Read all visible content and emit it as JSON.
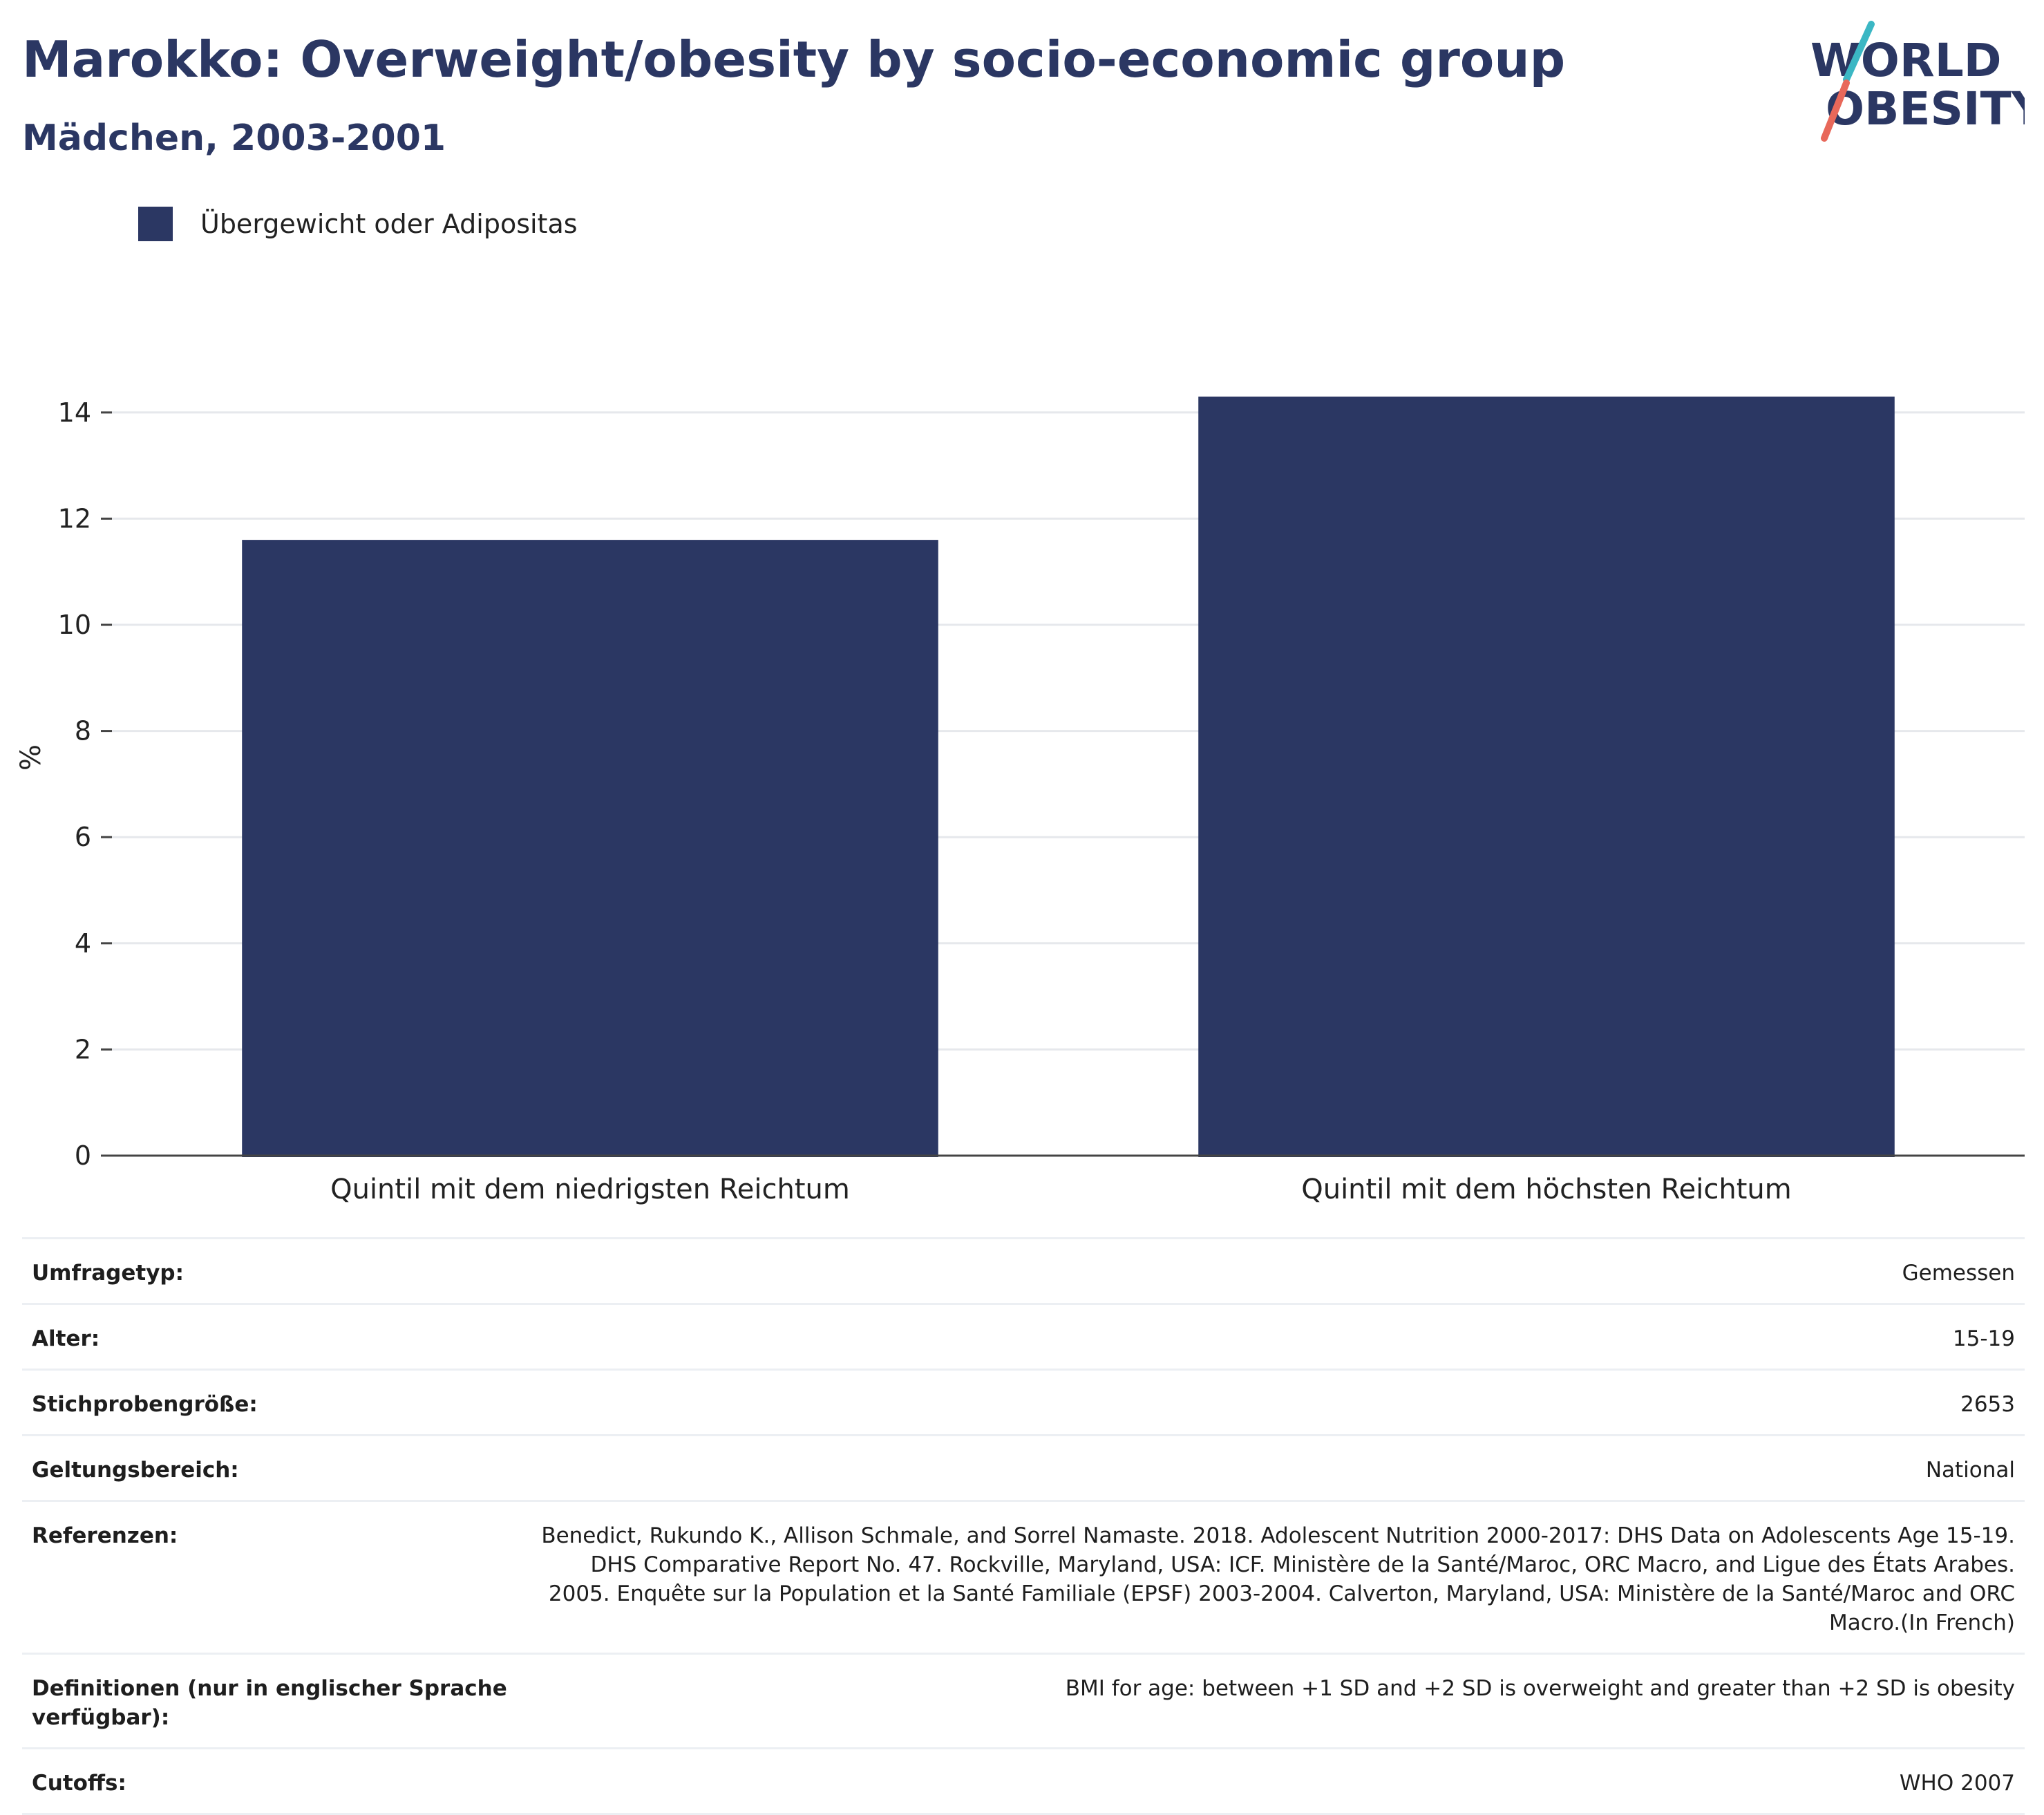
{
  "header": {
    "title": "Marokko: Overweight/obesity by socio-economic group",
    "subtitle": "Mädchen, 2003-2001"
  },
  "logo": {
    "line1": "WORLD",
    "line2": "OBESITY",
    "colors": {
      "text": "#2b3763",
      "slash_top": "#3bb7c4",
      "slash_bottom": "#e8685a"
    }
  },
  "legend": {
    "label": "Übergewicht oder Adipositas",
    "color": "#2b3763"
  },
  "chart_data": {
    "type": "bar",
    "categories": [
      "Quintil mit dem niedrigsten Reichtum",
      "Quintil mit dem höchsten Reichtum"
    ],
    "series": [
      {
        "name": "Übergewicht oder Adipositas",
        "values": [
          11.6,
          14.3
        ],
        "color": "#2b3763"
      }
    ],
    "ylabel": "%",
    "ylim": [
      0,
      15
    ],
    "yticks": [
      0,
      2,
      4,
      6,
      8,
      10,
      12,
      14
    ],
    "grid": true,
    "legend_position": "top-left"
  },
  "meta": {
    "rows": [
      {
        "label": "Umfragetyp:",
        "value": "Gemessen"
      },
      {
        "label": "Alter:",
        "value": "15-19"
      },
      {
        "label": "Stichprobengröße:",
        "value": "2653"
      },
      {
        "label": "Geltungsbereich:",
        "value": "National"
      },
      {
        "label": "Referenzen:",
        "value": "Benedict, Rukundo K., Allison Schmale, and Sorrel Namaste. 2018. Adolescent Nutrition 2000-2017: DHS Data on Adolescents Age 15-19. DHS Comparative Report No. 47. Rockville, Maryland, USA: ICF. Ministère de la Santé/Maroc, ORC Macro, and Ligue des États Arabes. 2005. Enquête sur la Population et la Santé Familiale (EPSF) 2003-2004. Calverton, Maryland, USA: Ministère de la Santé/Maroc and ORC Macro.(In French)"
      },
      {
        "label": "Definitionen (nur in englischer Sprache verfügbar):",
        "value": "BMI for age: between +1 SD and +2 SD is overweight and greater than +2 SD is obesity"
      },
      {
        "label": "Cutoffs:",
        "value": "WHO 2007"
      }
    ]
  }
}
